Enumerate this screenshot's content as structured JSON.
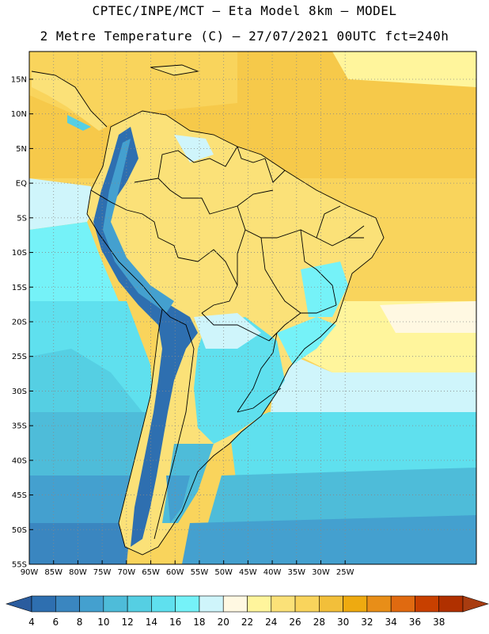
{
  "header": {
    "title": "CPTEC/INPE/MCT –  Eta Model 8km – MODEL",
    "subtitle": "2 Metre Temperature (C) – 27/07/2021 00UTC fct=240h"
  },
  "map": {
    "lon_range": [
      -90,
      2
    ],
    "lat_range": [
      -55,
      19
    ],
    "lat_ticks": [
      "15N",
      "10N",
      "5N",
      "EQ",
      "5S",
      "10S",
      "15S",
      "20S",
      "25S",
      "30S",
      "35S",
      "40S",
      "45S",
      "50S",
      "55S"
    ],
    "lon_ticks": [
      "90W",
      "85W",
      "80W",
      "75W",
      "70W",
      "65W",
      "60W",
      "55W",
      "50W",
      "45W",
      "40W",
      "35W",
      "30W",
      "25W"
    ]
  },
  "colorbar": {
    "labels": [
      "4",
      "6",
      "8",
      "10",
      "12",
      "14",
      "16",
      "18",
      "20",
      "22",
      "24",
      "26",
      "28",
      "30",
      "32",
      "34",
      "36",
      "38"
    ],
    "colors": [
      "#2e6fb0",
      "#3a86c0",
      "#44a0cf",
      "#4ebcd9",
      "#55cfe3",
      "#5fe0ee",
      "#75f2f8",
      "#cff5fb",
      "#fff8e2",
      "#fff59c",
      "#fbe178",
      "#f9d45c",
      "#f2bf3a",
      "#eeaa10",
      "#e88e18",
      "#e06a10",
      "#c84000",
      "#b03000"
    ],
    "under_color": "#2a5c9e",
    "over_color": "#a83c10"
  }
}
